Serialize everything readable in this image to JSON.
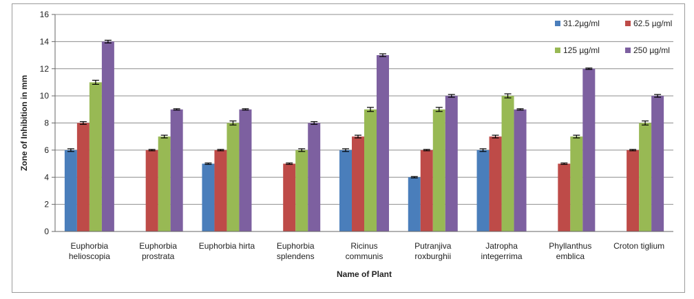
{
  "chart_data": {
    "type": "bar",
    "title": "",
    "xlabel": "Name of Plant",
    "ylabel": "Zone of Inhibition in mm",
    "ylim": [
      0,
      16
    ],
    "ytick_step": 2,
    "yticks": [
      "0",
      "2",
      "4",
      "6",
      "8",
      "10",
      "12",
      "14",
      "16"
    ],
    "grid": true,
    "legend_position": "top-right",
    "categories": [
      [
        "Euphorbia",
        "helioscopia"
      ],
      [
        "Euphorbia",
        "prostrata"
      ],
      [
        "Euphorbia hirta"
      ],
      [
        "Euphorbia",
        "splendens"
      ],
      [
        "Ricinus",
        "communis"
      ],
      [
        "Putranjiva",
        "roxburghii"
      ],
      [
        "Jatropha",
        "integerrima"
      ],
      [
        "Phyllanthus",
        "emblica"
      ],
      [
        "Croton tiglium"
      ]
    ],
    "series": [
      {
        "name": "31.2µg/ml",
        "color": "#4a7ebb",
        "values": [
          6,
          null,
          5,
          null,
          6,
          4,
          6,
          null,
          null
        ]
      },
      {
        "name": "62.5 µg/ml",
        "color": "#be4b48",
        "values": [
          8,
          6,
          6,
          5,
          7,
          6,
          7,
          5,
          6
        ]
      },
      {
        "name": "125 µg/ml",
        "color": "#98b954",
        "values": [
          11,
          7,
          8,
          6,
          9,
          9,
          10,
          7,
          8
        ]
      },
      {
        "name": "250 µg/ml",
        "color": "#7d60a0",
        "values": [
          14,
          9,
          9,
          8,
          13,
          10,
          9,
          12,
          10
        ]
      }
    ],
    "errors": [
      [
        0.1,
        null,
        0.05,
        null,
        0.1,
        0.05,
        0.1,
        null,
        null
      ],
      [
        0.1,
        0.05,
        0.05,
        0.05,
        0.1,
        0.05,
        0.1,
        0.05,
        0.05
      ],
      [
        0.15,
        0.1,
        0.15,
        0.1,
        0.15,
        0.15,
        0.15,
        0.1,
        0.15
      ],
      [
        0.1,
        0.05,
        0.05,
        0.1,
        0.1,
        0.1,
        0.05,
        0.05,
        0.1
      ]
    ]
  }
}
